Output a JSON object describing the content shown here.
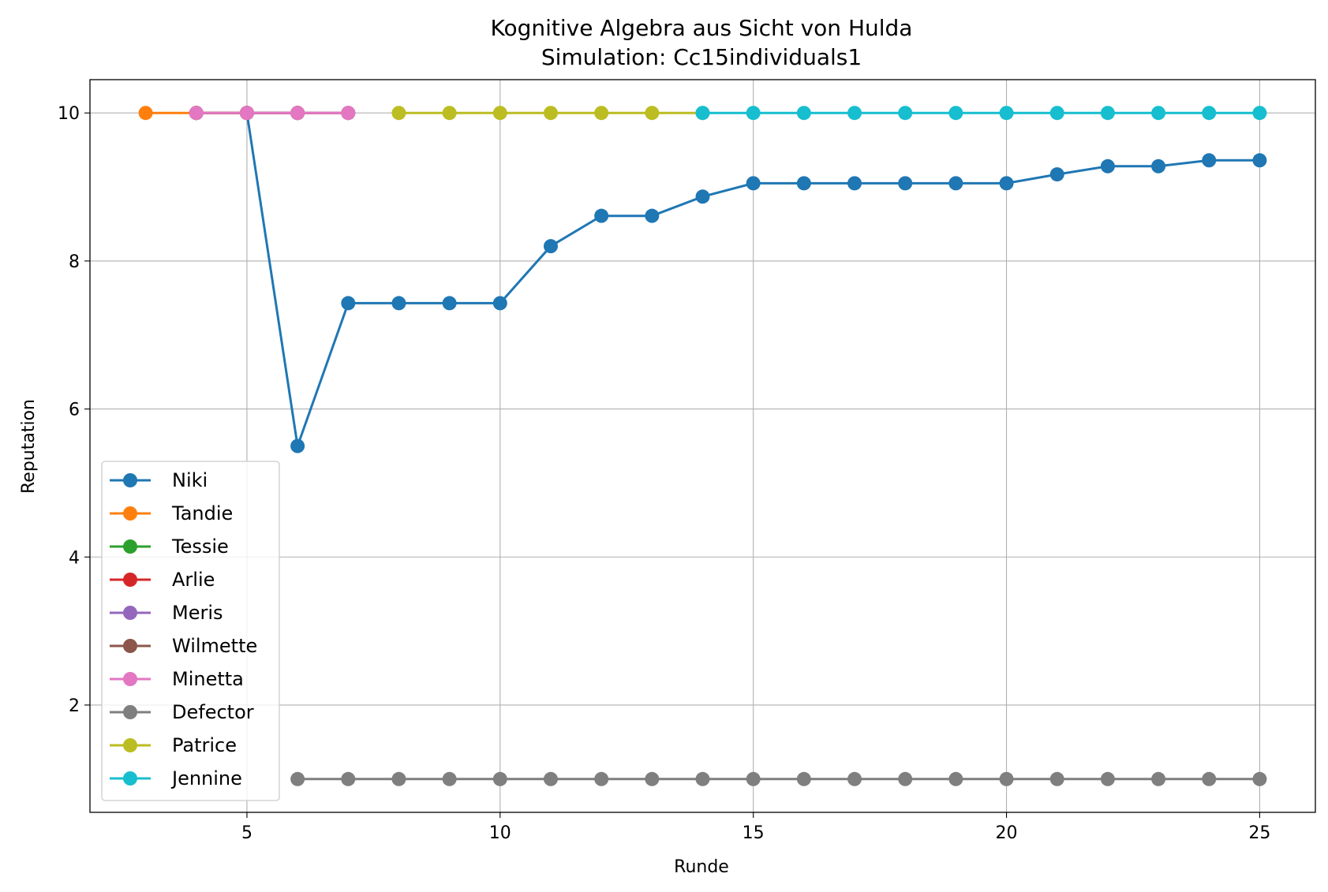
{
  "chart_data": {
    "type": "line",
    "title": "Kognitive Algebra aus Sicht von Hulda",
    "subtitle": "Simulation: Cc15individuals1",
    "xlabel": "Runde",
    "ylabel": "Reputation",
    "xlim": [
      1.9,
      26.1
    ],
    "ylim": [
      0.55,
      10.45
    ],
    "xticks": [
      5,
      10,
      15,
      20,
      25
    ],
    "yticks": [
      2,
      4,
      6,
      8,
      10
    ],
    "grid": true,
    "legend_position": "lower-left",
    "series": [
      {
        "name": "Niki",
        "color": "#1f77b4",
        "x": [
          4,
          5,
          6,
          7,
          8,
          9,
          10,
          11,
          12,
          13,
          14,
          15,
          16,
          17,
          18,
          19,
          20,
          21,
          22,
          23,
          24,
          25
        ],
        "y": [
          10,
          10,
          5.5,
          7.43,
          7.43,
          7.43,
          7.43,
          8.2,
          8.61,
          8.61,
          8.87,
          9.05,
          9.05,
          9.05,
          9.05,
          9.05,
          9.05,
          9.17,
          9.28,
          9.28,
          9.36,
          9.36
        ]
      },
      {
        "name": "Tandie",
        "color": "#ff7f0e",
        "x": [
          3,
          4,
          5
        ],
        "y": [
          10,
          10,
          10
        ]
      },
      {
        "name": "Tessie",
        "color": "#2ca02c",
        "x": [
          4,
          5,
          6
        ],
        "y": [
          10,
          10,
          10
        ]
      },
      {
        "name": "Arlie",
        "color": "#d62728",
        "x": [
          4,
          5,
          6
        ],
        "y": [
          10,
          10,
          10
        ]
      },
      {
        "name": "Meris",
        "color": "#9467bd",
        "x": [
          5,
          6,
          7
        ],
        "y": [
          10,
          10,
          10
        ]
      },
      {
        "name": "Wilmette",
        "color": "#8c564b",
        "x": [
          5,
          6,
          7
        ],
        "y": [
          10,
          10,
          10
        ]
      },
      {
        "name": "Minetta",
        "color": "#e377c2",
        "x": [
          4,
          5,
          6,
          7
        ],
        "y": [
          10,
          10,
          10,
          10
        ]
      },
      {
        "name": "Defector",
        "color": "#7f7f7f",
        "x": [
          6,
          7,
          8,
          9,
          10,
          11,
          12,
          13,
          14,
          15,
          16,
          17,
          18,
          19,
          20,
          21,
          22,
          23,
          24,
          25
        ],
        "y": [
          1,
          1,
          1,
          1,
          1,
          1,
          1,
          1,
          1,
          1,
          1,
          1,
          1,
          1,
          1,
          1,
          1,
          1,
          1,
          1
        ]
      },
      {
        "name": "Patrice",
        "color": "#bcbd22",
        "x": [
          8,
          9,
          10,
          11,
          12,
          13,
          14
        ],
        "y": [
          10,
          10,
          10,
          10,
          10,
          10,
          10
        ]
      },
      {
        "name": "Jennine",
        "color": "#17becf",
        "x": [
          14,
          15,
          16,
          17,
          18,
          19,
          20,
          21,
          22,
          23,
          24,
          25
        ],
        "y": [
          10,
          10,
          10,
          10,
          10,
          10,
          10,
          10,
          10,
          10,
          10,
          10
        ]
      }
    ]
  }
}
